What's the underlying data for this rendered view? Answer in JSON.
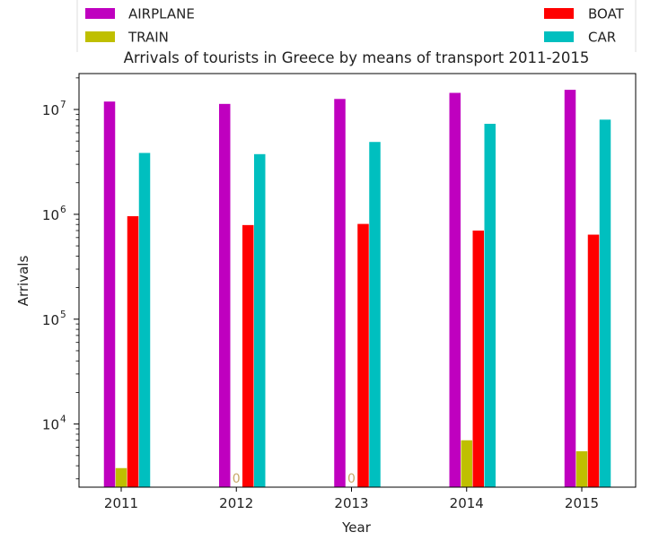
{
  "chart_data": {
    "type": "bar",
    "title": "Arrivals of tourists in Greece by means of transport 2011-2015",
    "xlabel": "Year",
    "ylabel": "Arrivals",
    "categories": [
      "2011",
      "2012",
      "2013",
      "2014",
      "2015"
    ],
    "yscale": "log",
    "ylim": [
      2500,
      22000000
    ],
    "yticks": [
      {
        "value": 10000,
        "base": "10",
        "exp": "4"
      },
      {
        "value": 100000,
        "base": "10",
        "exp": "5"
      },
      {
        "value": 1000000,
        "base": "10",
        "exp": "6"
      },
      {
        "value": 10000000,
        "base": "10",
        "exp": "7"
      }
    ],
    "grid": false,
    "legend_placement": "top, above plot, split left and right",
    "series": [
      {
        "name": "AIRPLANE",
        "color": "#bf00bf",
        "values": [
          11900000,
          11300000,
          12600000,
          14400000,
          15400000
        ]
      },
      {
        "name": "TRAIN",
        "color": "#bfbf00",
        "values": [
          3800,
          0,
          0,
          7000,
          5500
        ]
      },
      {
        "name": "BOAT",
        "color": "#ff0000",
        "values": [
          960000,
          790000,
          810000,
          700000,
          640000
        ]
      },
      {
        "name": "CAR",
        "color": "#00bfbf",
        "values": [
          3850000,
          3750000,
          4900000,
          7300000,
          8000000
        ]
      }
    ],
    "legend_left": [
      "AIRPLANE",
      "TRAIN"
    ],
    "legend_right": [
      "BOAT",
      "CAR"
    ],
    "zero_label": "0",
    "zero_label_color": "#c8a868"
  }
}
